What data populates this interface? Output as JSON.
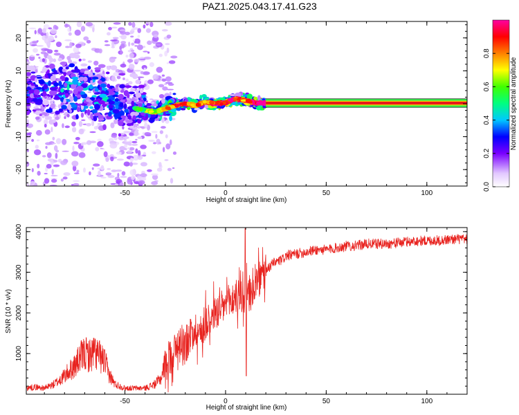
{
  "title": "PAZ1.2025.043.17.41.G23",
  "colors": {
    "snr_line": "#e8221e",
    "signal_core": "#e81a1a",
    "signal_edge": "#2fd64a",
    "axis": "#000000"
  },
  "chart_data": [
    {
      "type": "heatmap",
      "xlabel": "Height of straight line (km)",
      "ylabel": "Frequency (Hz)",
      "xlim": [
        -99,
        120
      ],
      "ylim": [
        -25,
        25
      ],
      "x_ticks": [
        -50,
        0,
        50,
        100
      ],
      "x_tick_labels": [
        "-50",
        "0",
        "50",
        "100"
      ],
      "y_ticks": [
        -20,
        -10,
        0,
        10,
        20
      ],
      "y_tick_labels": [
        "-20",
        "-10",
        "0",
        "10",
        "20"
      ],
      "grid": false,
      "colormap": "rainbow",
      "colorbar": {
        "label": "Normalized spectral amplitude",
        "range": [
          0,
          1
        ],
        "ticks": [
          0.0,
          0.2,
          0.4,
          0.6,
          0.8
        ],
        "tick_labels": [
          "0.0",
          "0.2",
          "0.4",
          "0.6",
          "0.8"
        ]
      },
      "ridge": {
        "x": [
          -99,
          -90,
          -80,
          -70,
          -60,
          -50,
          -45,
          -40,
          -35,
          -30,
          -25,
          -20,
          -15,
          -10,
          -5,
          0,
          5,
          10,
          15,
          20,
          50,
          120
        ],
        "frequency": [
          3,
          4,
          5,
          3.5,
          1,
          -1,
          -1.5,
          -2,
          -2.5,
          -1.5,
          -0.5,
          0,
          -0.5,
          0.5,
          0,
          0.3,
          1.5,
          1,
          0.3,
          0.2,
          0.2,
          0.2
        ],
        "amplitude": [
          0.35,
          0.4,
          0.45,
          0.45,
          0.45,
          0.35,
          0.35,
          0.45,
          0.55,
          0.6,
          0.7,
          0.75,
          0.65,
          0.7,
          0.8,
          0.8,
          0.75,
          0.7,
          0.85,
          1.0,
          1.0,
          1.0
        ]
      }
    },
    {
      "type": "line",
      "xlabel": "Height of straight line (km)",
      "ylabel": "SNR (10 * v/v)",
      "xlim": [
        -99,
        120
      ],
      "ylim": [
        0,
        4100
      ],
      "x_ticks": [
        -50,
        0,
        50,
        100
      ],
      "x_tick_labels": [
        "-50",
        "0",
        "50",
        "100"
      ],
      "y_ticks": [
        1000,
        2000,
        3000,
        4000
      ],
      "y_tick_labels": [
        "1000",
        "2000",
        "3000",
        "4000"
      ],
      "grid": false,
      "series": [
        {
          "x": [
            -99,
            -95,
            -90,
            -85,
            -80,
            -75,
            -72,
            -70,
            -67,
            -65,
            -62,
            -60,
            -58,
            -55,
            -50,
            -45,
            -40,
            -35,
            -32,
            -30,
            -28,
            -25,
            -22,
            -20,
            -17,
            -15,
            -12,
            -10,
            -7,
            -5,
            -2,
            0,
            3,
            5,
            8,
            10,
            12,
            15,
            18,
            20,
            23,
            25,
            28,
            30,
            35,
            40,
            45,
            50,
            55,
            60,
            65,
            70,
            75,
            80,
            85,
            90,
            95,
            100,
            105,
            110,
            115,
            120
          ],
          "y": [
            150,
            180,
            150,
            250,
            450,
            700,
            900,
            1000,
            950,
            1050,
            900,
            800,
            500,
            250,
            150,
            150,
            150,
            250,
            400,
            800,
            900,
            1100,
            1400,
            1200,
            1500,
            1600,
            1500,
            1800,
            1900,
            2000,
            2100,
            2200,
            2300,
            2400,
            2400,
            2300,
            2500,
            2700,
            2900,
            3000,
            3200,
            3250,
            3300,
            3400,
            3450,
            3500,
            3550,
            3550,
            3600,
            3650,
            3650,
            3700,
            3700,
            3700,
            3720,
            3750,
            3770,
            3780,
            3780,
            3800,
            3820,
            3800
          ]
        }
      ]
    }
  ]
}
